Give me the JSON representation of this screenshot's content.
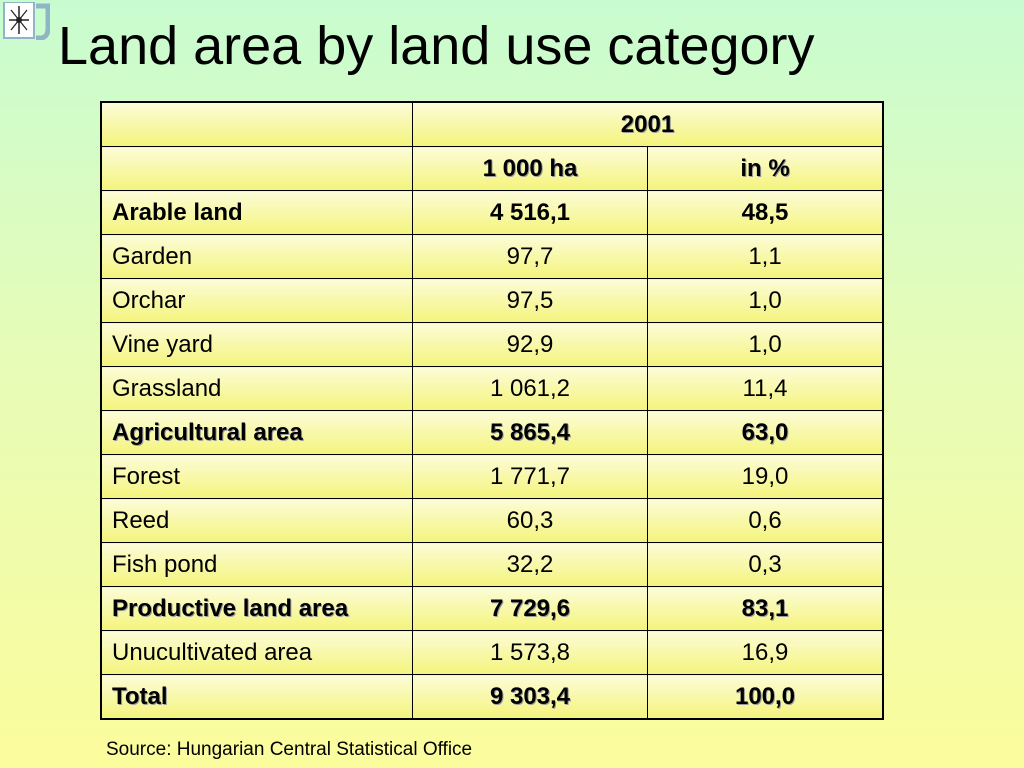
{
  "title": "Land area by land use category",
  "table": {
    "year_header": "2001",
    "col_headers": [
      "1 000 ha",
      "in %"
    ],
    "rows": [
      {
        "category": "Arable land",
        "ha": "4 516,1",
        "pct": "48,5"
      },
      {
        "category": "Garden",
        "ha": "97,7",
        "pct": "1,1"
      },
      {
        "category": "Orchar",
        "ha": "97,5",
        "pct": "1,0"
      },
      {
        "category": "Vine yard",
        "ha": "92,9",
        "pct": "1,0"
      },
      {
        "category": "Grassland",
        "ha": "1 061,2",
        "pct": "11,4"
      },
      {
        "category": "Agricultural area",
        "ha": "5 865,4",
        "pct": "63,0"
      },
      {
        "category": "Forest",
        "ha": "1 771,7",
        "pct": "19,0"
      },
      {
        "category": "Reed",
        "ha": "60,3",
        "pct": "0,6"
      },
      {
        "category": "Fish pond",
        "ha": "32,2",
        "pct": "0,3"
      },
      {
        "category": "Productive land area",
        "ha": "7 729,6",
        "pct": "83,1"
      },
      {
        "category": "Unucultivated area",
        "ha": "1 573,8",
        "pct": "16,9"
      },
      {
        "category": "Total",
        "ha": "9 303,4",
        "pct": "100,0"
      }
    ]
  },
  "source": "Source: Hungarian Central Statistical Office",
  "colors": {
    "background_top": "#c8fcd0",
    "background_bottom": "#fbfc9c",
    "cell_top": "#fcfcd8",
    "cell_bottom": "#f4f47c"
  },
  "icons": {
    "logo": "university-seal-icon"
  }
}
